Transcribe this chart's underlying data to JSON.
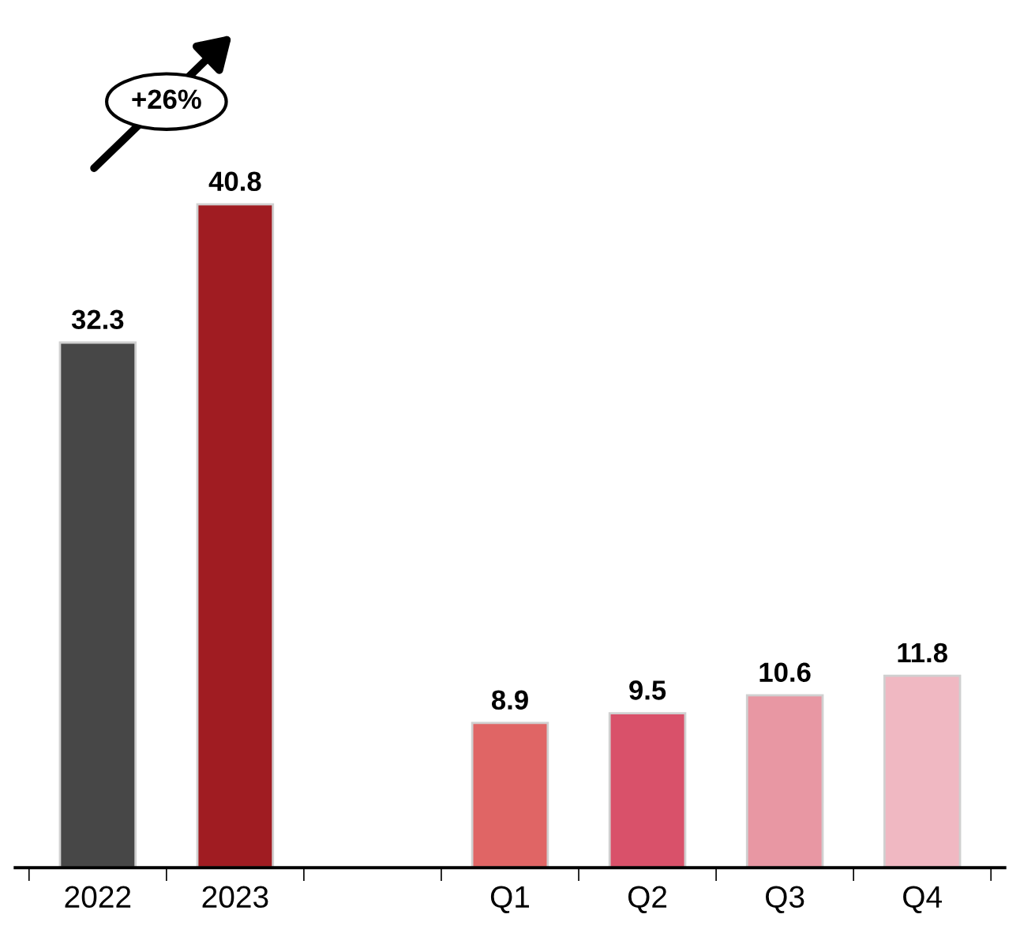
{
  "chart_data": {
    "type": "bar",
    "categories": [
      "2022",
      "2023",
      null,
      "Q1",
      "Q2",
      "Q3",
      "Q4"
    ],
    "values": [
      32.3,
      40.8,
      null,
      8.9,
      9.5,
      10.6,
      11.8
    ],
    "colors": [
      "#474747",
      "#a01c22",
      "#ffffff",
      "#e06565",
      "#d9516a",
      "#e897a3",
      "#f0b8c2"
    ],
    "data_labels": true,
    "annotations": [
      "+26%"
    ]
  }
}
